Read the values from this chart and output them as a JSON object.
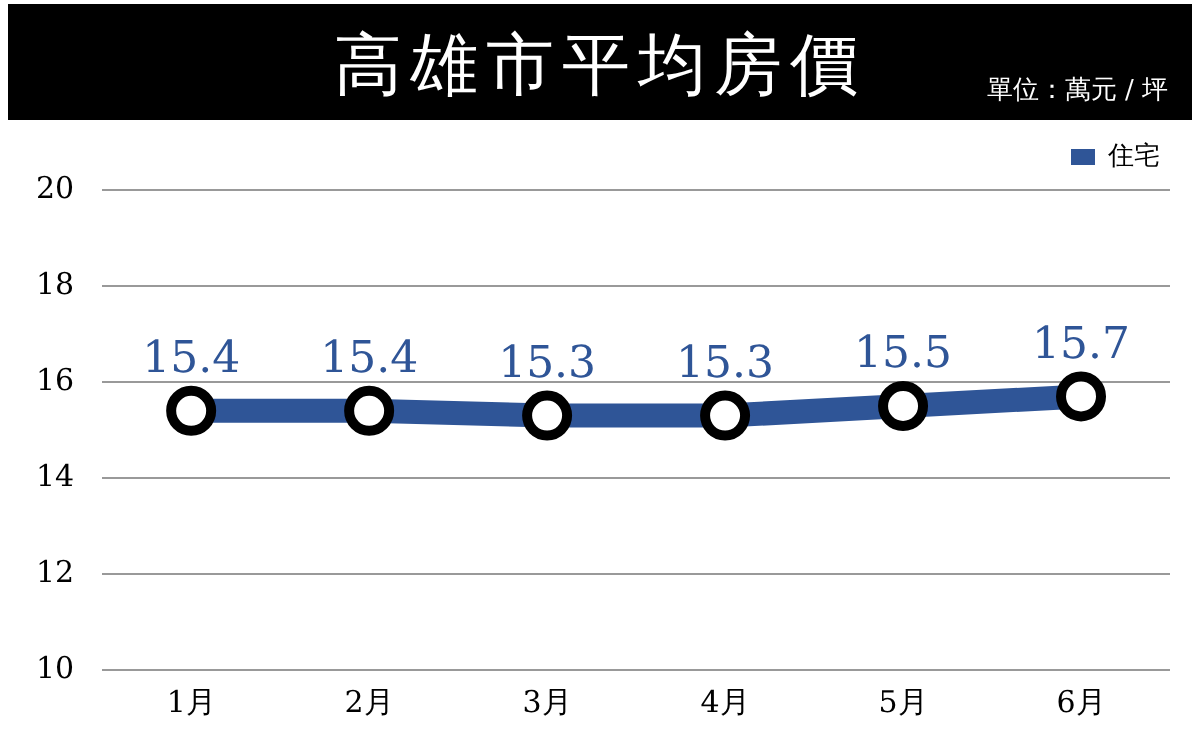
{
  "chart_data": {
    "type": "line",
    "title": "高雄市平均房價",
    "annotations": [
      "單位：萬元 / 坪"
    ],
    "categories": [
      "1月",
      "2月",
      "3月",
      "4月",
      "5月",
      "6月"
    ],
    "series": [
      {
        "name": "住宅",
        "color": "#2f5597",
        "values": [
          15.4,
          15.4,
          15.3,
          15.3,
          15.5,
          15.7
        ]
      }
    ],
    "ylim": [
      10,
      20
    ],
    "yticks": [
      10,
      12,
      14,
      16,
      18,
      20
    ],
    "grid": "y",
    "legend": "top right",
    "marker": "circle",
    "data_labels": true
  }
}
